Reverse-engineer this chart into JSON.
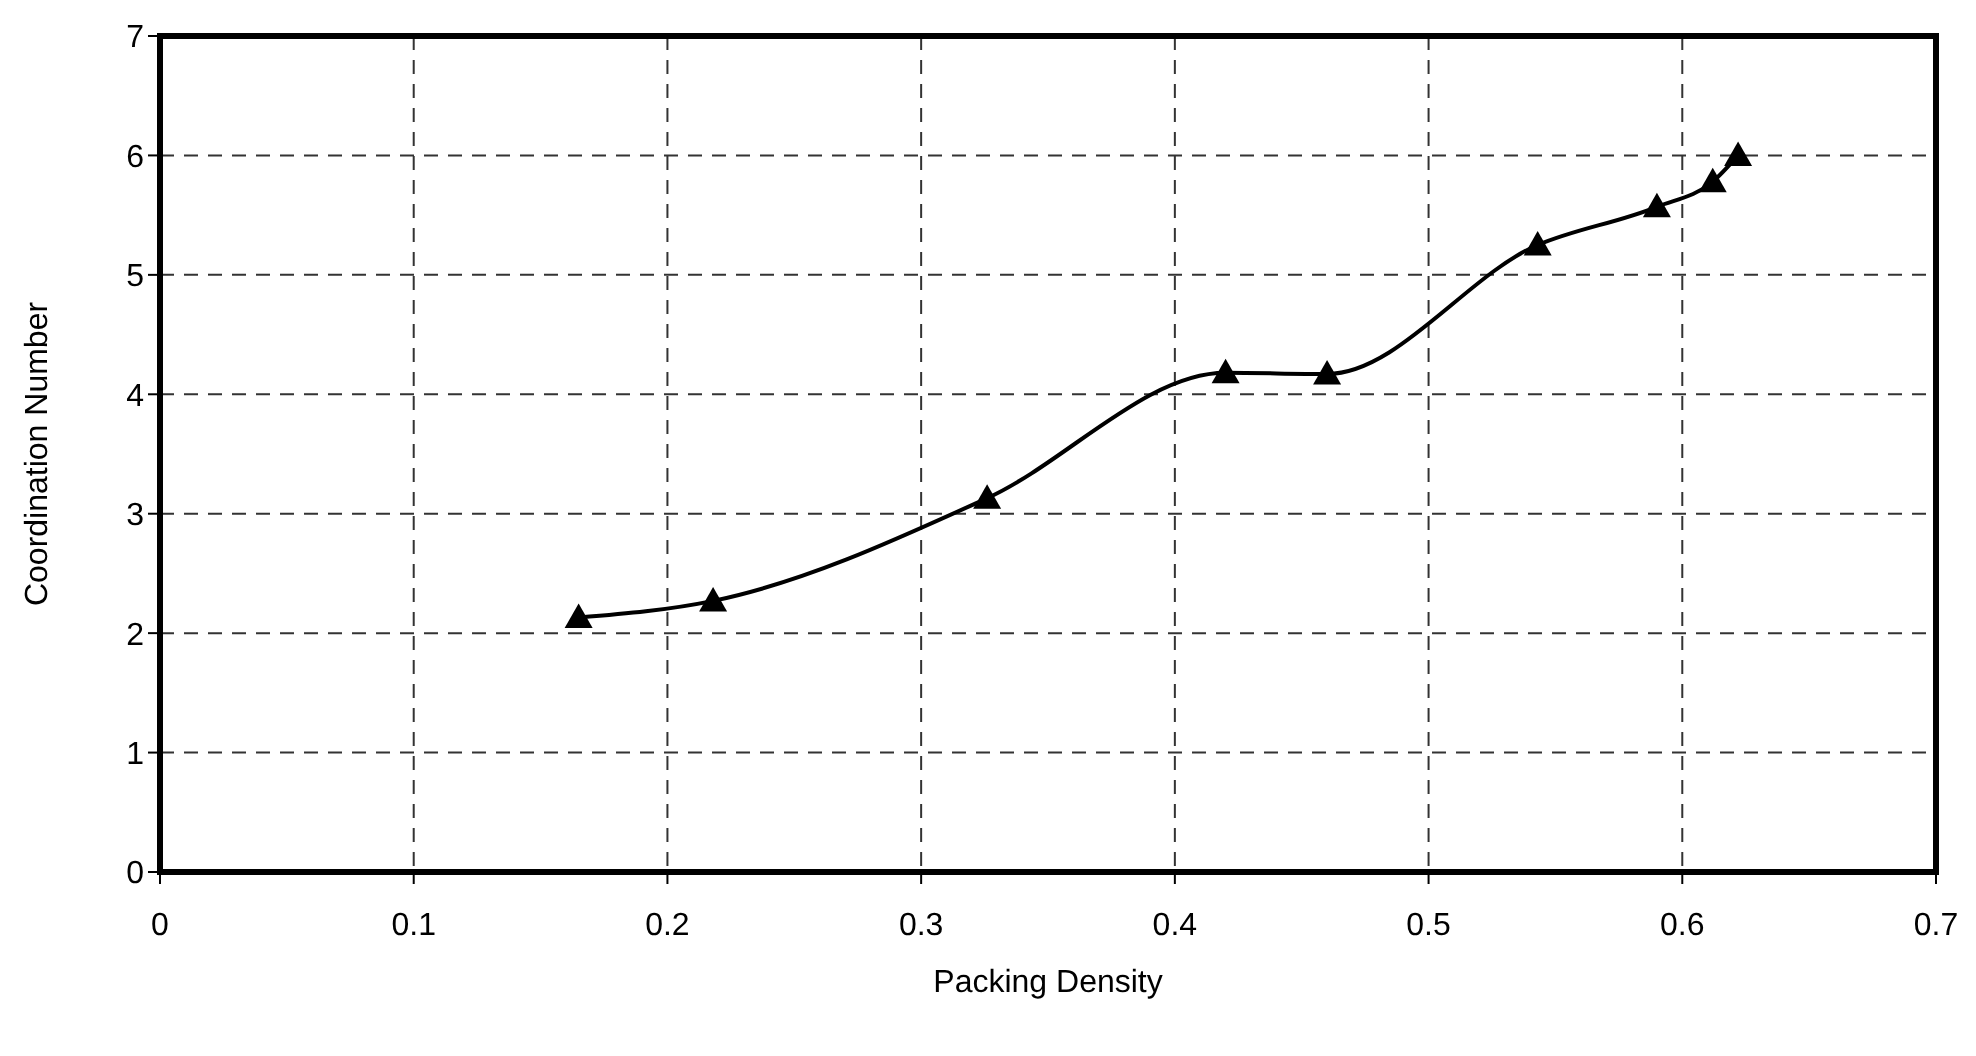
{
  "chart_data": {
    "type": "line",
    "xlabel": "Packing Density",
    "ylabel": "Coordination Number",
    "x": [
      0.165,
      0.218,
      0.326,
      0.42,
      0.46,
      0.543,
      0.59,
      0.612,
      0.622
    ],
    "series": [
      {
        "color": "#000000",
        "values": [
          2.13,
          2.27,
          3.13,
          4.18,
          4.17,
          5.25,
          5.57,
          5.78,
          6.0
        ]
      }
    ],
    "xlim": [
      0,
      0.7
    ],
    "xticks": [
      0,
      0.1,
      0.2,
      0.3,
      0.4,
      0.5,
      0.6,
      0.7
    ],
    "ylim": [
      0,
      7
    ],
    "yticks": [
      0,
      1,
      2,
      3,
      4,
      5,
      6,
      7
    ],
    "grid": true,
    "marker": "triangle",
    "line_style": "solid",
    "legend": false
  }
}
